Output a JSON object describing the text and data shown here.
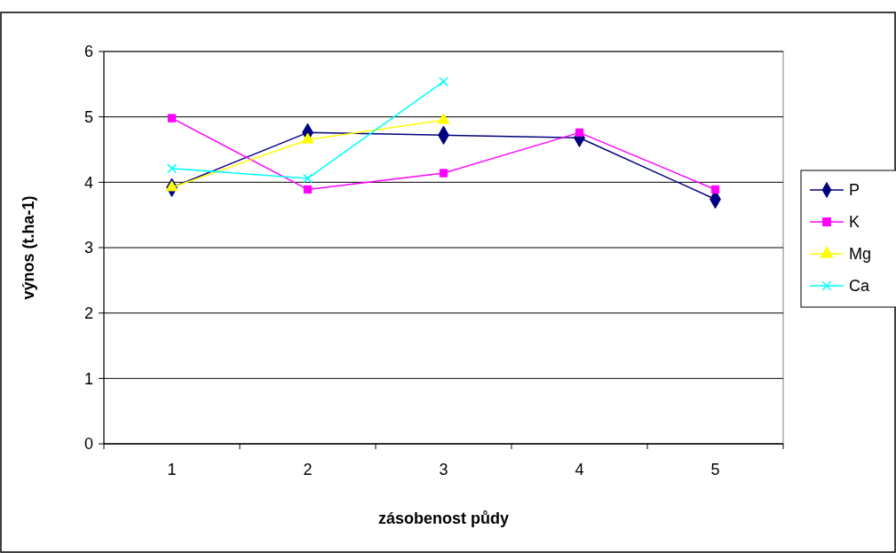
{
  "chart_data": {
    "type": "line",
    "xlabel": "zásobenost půdy",
    "ylabel": "výnos (t.ha-1)",
    "categories": [
      "1",
      "2",
      "3",
      "4",
      "5"
    ],
    "series": [
      {
        "name": "P",
        "color": "#000080",
        "marker": "diamond",
        "values": [
          3.92,
          4.76,
          4.72,
          4.68,
          3.74
        ]
      },
      {
        "name": "K",
        "color": "#ff00ff",
        "marker": "square",
        "values": [
          4.98,
          3.89,
          4.14,
          4.76,
          3.89
        ]
      },
      {
        "name": "Mg",
        "color": "#ffff00",
        "marker": "triangle",
        "values": [
          3.92,
          4.65,
          4.95,
          null,
          null
        ]
      },
      {
        "name": "Ca",
        "color": "#00ffff",
        "marker": "cross",
        "values": [
          4.21,
          4.06,
          5.54,
          null,
          null
        ]
      }
    ],
    "ylim": [
      0,
      6
    ],
    "yticks": [
      0,
      1,
      2,
      3,
      4,
      5,
      6
    ],
    "grid": "y",
    "legend": "right"
  }
}
